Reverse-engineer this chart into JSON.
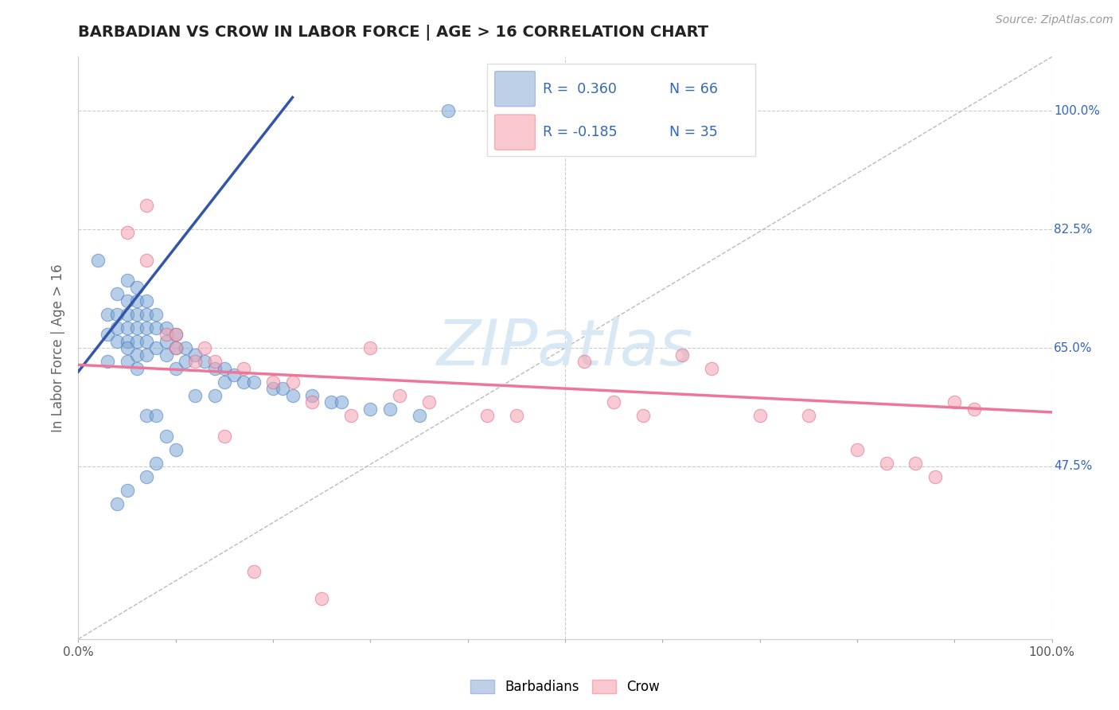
{
  "title": "BARBADIAN VS CROW IN LABOR FORCE | AGE > 16 CORRELATION CHART",
  "source": "Source: ZipAtlas.com",
  "ylabel": "In Labor Force | Age > 16",
  "x_min": 0.0,
  "x_max": 1.0,
  "y_min": 0.22,
  "y_max": 1.08,
  "y_ticks": [
    0.475,
    0.65,
    0.825,
    1.0
  ],
  "y_tick_labels": [
    "47.5%",
    "65.0%",
    "82.5%",
    "100.0%"
  ],
  "x_ticks": [
    0.0,
    0.1,
    0.2,
    0.3,
    0.4,
    0.5,
    0.6,
    0.7,
    0.8,
    0.9,
    1.0
  ],
  "x_tick_labels_show": [
    "0.0%",
    "",
    "",
    "",
    "",
    "",
    "",
    "",
    "",
    "",
    "100.0%"
  ],
  "blue_color": "#7BA7D4",
  "pink_color": "#F4A0B0",
  "blue_edge_color": "#4477BB",
  "pink_edge_color": "#E06080",
  "blue_line_color": "#3355AA",
  "pink_line_color": "#EE7799",
  "legend_blue_fill": "#BDD0E8",
  "legend_pink_fill": "#F9C8D0",
  "watermark_color": "#D8E8F4",
  "blue_scatter_x": [
    0.38,
    0.02,
    0.03,
    0.03,
    0.03,
    0.04,
    0.04,
    0.04,
    0.04,
    0.05,
    0.05,
    0.05,
    0.05,
    0.05,
    0.05,
    0.05,
    0.06,
    0.06,
    0.06,
    0.06,
    0.06,
    0.06,
    0.06,
    0.07,
    0.07,
    0.07,
    0.07,
    0.07,
    0.07,
    0.08,
    0.08,
    0.08,
    0.08,
    0.09,
    0.09,
    0.09,
    0.09,
    0.1,
    0.1,
    0.1,
    0.1,
    0.11,
    0.11,
    0.12,
    0.12,
    0.13,
    0.14,
    0.14,
    0.15,
    0.15,
    0.16,
    0.17,
    0.18,
    0.2,
    0.21,
    0.22,
    0.24,
    0.26,
    0.27,
    0.3,
    0.32,
    0.35,
    0.04,
    0.05,
    0.07,
    0.08
  ],
  "blue_scatter_y": [
    1.0,
    0.78,
    0.7,
    0.67,
    0.63,
    0.73,
    0.7,
    0.68,
    0.66,
    0.75,
    0.72,
    0.7,
    0.68,
    0.66,
    0.65,
    0.63,
    0.74,
    0.72,
    0.7,
    0.68,
    0.66,
    0.64,
    0.62,
    0.72,
    0.7,
    0.68,
    0.66,
    0.64,
    0.55,
    0.7,
    0.68,
    0.65,
    0.55,
    0.68,
    0.66,
    0.64,
    0.52,
    0.67,
    0.65,
    0.62,
    0.5,
    0.65,
    0.63,
    0.64,
    0.58,
    0.63,
    0.62,
    0.58,
    0.62,
    0.6,
    0.61,
    0.6,
    0.6,
    0.59,
    0.59,
    0.58,
    0.58,
    0.57,
    0.57,
    0.56,
    0.56,
    0.55,
    0.42,
    0.44,
    0.46,
    0.48
  ],
  "pink_scatter_x": [
    0.05,
    0.07,
    0.09,
    0.1,
    0.13,
    0.14,
    0.17,
    0.2,
    0.22,
    0.24,
    0.28,
    0.3,
    0.33,
    0.36,
    0.42,
    0.45,
    0.52,
    0.55,
    0.58,
    0.62,
    0.65,
    0.7,
    0.75,
    0.8,
    0.83,
    0.86,
    0.88,
    0.9,
    0.92,
    0.1,
    0.12,
    0.15,
    0.18,
    0.25,
    0.07
  ],
  "pink_scatter_y": [
    0.82,
    0.86,
    0.67,
    0.65,
    0.65,
    0.63,
    0.62,
    0.6,
    0.6,
    0.57,
    0.55,
    0.65,
    0.58,
    0.57,
    0.55,
    0.55,
    0.63,
    0.57,
    0.55,
    0.64,
    0.62,
    0.55,
    0.55,
    0.5,
    0.48,
    0.48,
    0.46,
    0.57,
    0.56,
    0.67,
    0.63,
    0.52,
    0.32,
    0.28,
    0.78
  ],
  "blue_trend_x": [
    0.0,
    0.22
  ],
  "blue_trend_y_start": 0.615,
  "blue_trend_y_end": 1.02,
  "pink_trend_x": [
    0.0,
    1.0
  ],
  "pink_trend_y_start": 0.625,
  "pink_trend_y_end": 0.555
}
